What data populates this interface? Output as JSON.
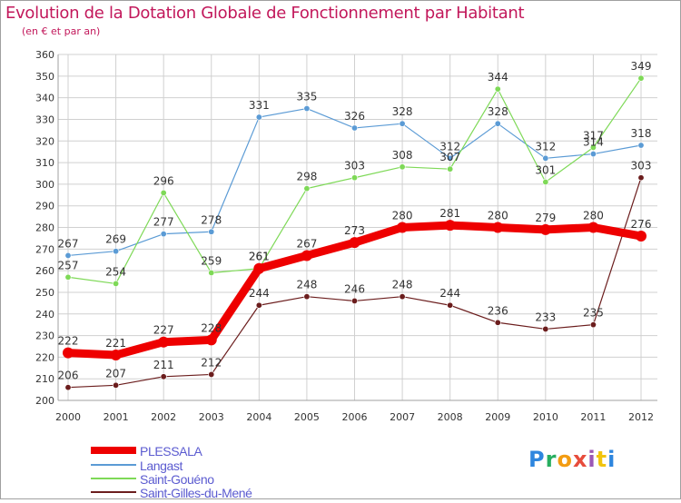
{
  "header": {
    "title": "Evolution de la Dotation Globale de Fonctionnement par Habitant",
    "subtitle": "(en € et par an)"
  },
  "logo": {
    "text": "Proxiti"
  },
  "colors": {
    "title": "#c2185b",
    "grid": "#d0d0d0",
    "axis": "#a0a0a0"
  },
  "chart_data": {
    "type": "line",
    "title": "Evolution de la Dotation Globale de Fonctionnement par Habitant",
    "subtitle": "(en € et par an)",
    "xlabel": "",
    "ylabel": "",
    "x": [
      "2000",
      "2001",
      "2002",
      "2003",
      "2004",
      "2005",
      "2006",
      "2007",
      "2008",
      "2009",
      "2010",
      "2011",
      "2012"
    ],
    "ylim": [
      200,
      360
    ],
    "yticks": [
      200,
      210,
      220,
      230,
      240,
      250,
      260,
      270,
      280,
      290,
      300,
      310,
      320,
      330,
      340,
      350,
      360
    ],
    "grid": true,
    "legend_position": "bottom-left",
    "series": [
      {
        "name": "PLESSALA",
        "color": "#ee0000",
        "width": 9,
        "values": [
          222,
          221,
          227,
          228,
          261,
          267,
          273,
          280,
          281,
          280,
          279,
          280,
          276
        ]
      },
      {
        "name": "Langast",
        "color": "#5b9bd5",
        "width": 1.2,
        "values": [
          267,
          269,
          277,
          278,
          331,
          335,
          326,
          328,
          312,
          328,
          312,
          314,
          318
        ]
      },
      {
        "name": "Saint-Gouéno",
        "color": "#7ed957",
        "width": 1.2,
        "values": [
          257,
          254,
          296,
          259,
          261,
          298,
          303,
          308,
          307,
          344,
          301,
          317,
          349
        ]
      },
      {
        "name": "Saint-Gilles-du-Mené",
        "color": "#6b1d1d",
        "width": 1.2,
        "values": [
          206,
          207,
          211,
          212,
          244,
          248,
          246,
          248,
          244,
          236,
          233,
          235,
          303
        ]
      }
    ]
  }
}
